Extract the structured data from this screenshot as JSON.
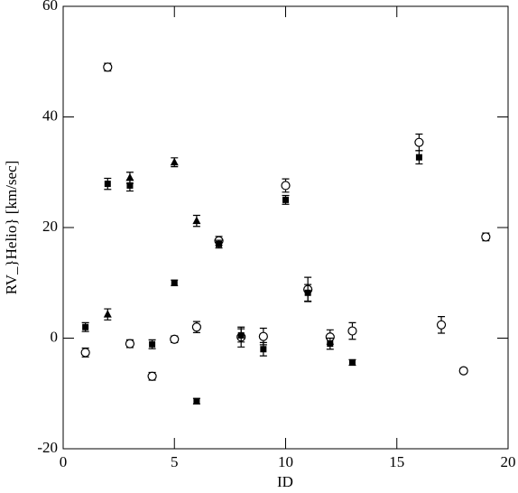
{
  "chart_data": {
    "type": "scatter",
    "x_label": "ID",
    "y_label": "RV_}Helio} [km/sec]",
    "xlim": [
      0,
      20
    ],
    "ylim": [
      -20,
      60
    ],
    "xticks": [
      0,
      5,
      10,
      15,
      20
    ],
    "yticks": [
      -20,
      0,
      20,
      40,
      60
    ],
    "series": [
      {
        "marker": "circle-open",
        "color": "#000000",
        "x": [
          1,
          2,
          3,
          4,
          5,
          6,
          7,
          8,
          9,
          10,
          11,
          12,
          13,
          16,
          17,
          18,
          19
        ],
        "values": [
          -2.6,
          49,
          -1.0,
          -6.9,
          -0.2,
          2.0,
          17.6,
          0.2,
          0.3,
          27.6,
          8.8,
          0.2,
          1.3,
          35.4,
          2.4,
          -5.9,
          18.3
        ],
        "errors": [
          0.8,
          0.7,
          0.7,
          0.7,
          0.6,
          1.0,
          0.8,
          1.8,
          1.5,
          1.2,
          2.2,
          1.3,
          1.5,
          1.5,
          1.5,
          0.5,
          0.7
        ]
      },
      {
        "marker": "square",
        "color": "#000000",
        "x": [
          1,
          2,
          3,
          4,
          5,
          6,
          7,
          8,
          9,
          10,
          11,
          12,
          13,
          16
        ],
        "values": [
          2.0,
          27.9,
          27.6,
          -1.1,
          10.0,
          -11.4,
          17.0,
          0.5,
          -2.0,
          25.0,
          8.2,
          -1.0,
          -4.4,
          32.7
        ],
        "errors": [
          0.8,
          1.0,
          1.0,
          0.8,
          0.5,
          0.5,
          0.7,
          1.2,
          1.2,
          0.8,
          1.5,
          1.0,
          0.5,
          1.2
        ]
      },
      {
        "marker": "triangle",
        "color": "#000000",
        "x": [
          2,
          3,
          5,
          6
        ],
        "values": [
          4.3,
          29.0,
          31.8,
          21.2
        ],
        "errors": [
          1.0,
          1.0,
          0.8,
          1.0
        ]
      }
    ]
  }
}
